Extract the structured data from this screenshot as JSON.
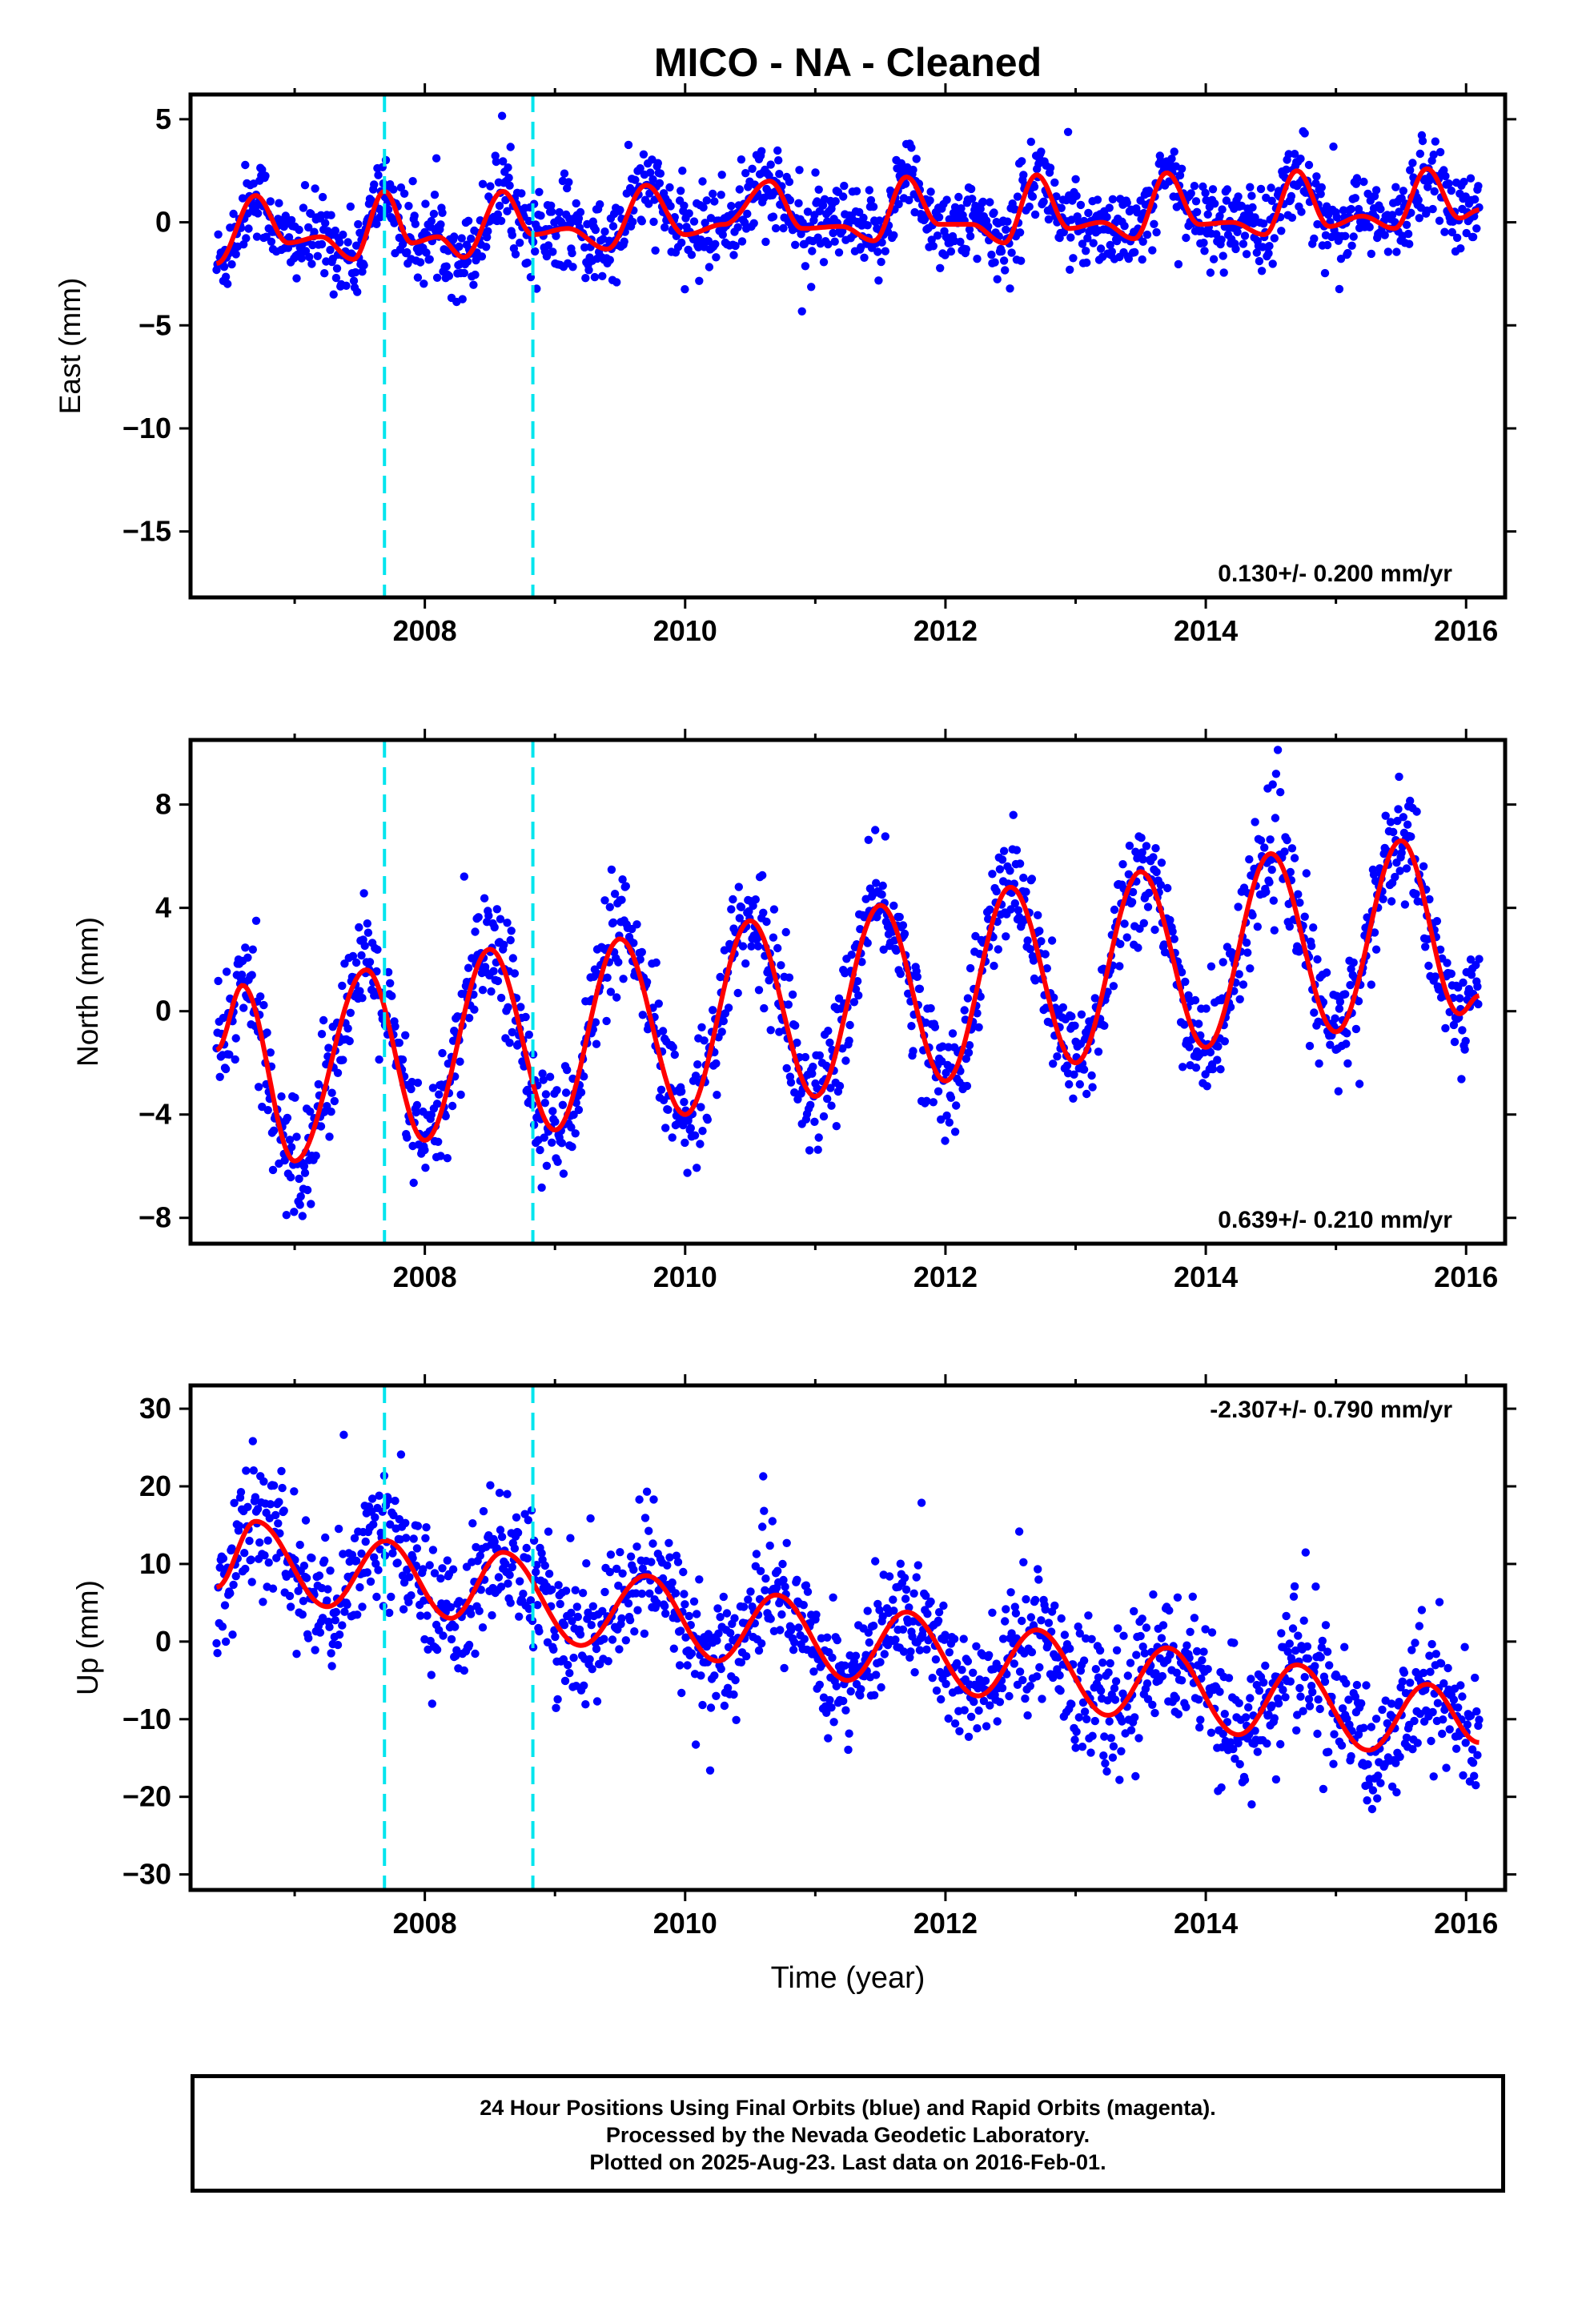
{
  "title": "MICO  - NA - Cleaned",
  "footer": {
    "line1": "24 Hour Positions Using Final Orbits (blue) and Rapid Orbits (magenta).",
    "line2": "Processed by the Nevada Geodetic Laboratory.",
    "line3": "Plotted on 2025-Aug-23. Last data on 2016-Feb-01."
  },
  "colors": {
    "points": "#0000ff",
    "fit": "#ff0000",
    "events": "#00e5ee"
  },
  "chart_data": [
    {
      "type": "scatter",
      "ylabel": "East (mm)",
      "xlabel": "",
      "xlim": [
        2006.2,
        2016.3
      ],
      "ylim": [
        -18.2,
        6.2
      ],
      "yticks": [
        -15,
        -10,
        -5,
        0,
        5
      ],
      "xticks": [
        2008,
        2010,
        2012,
        2014,
        2016
      ],
      "event_lines": [
        2007.69,
        2008.83
      ],
      "rate_label": "0.130+/- 0.200 mm/yr",
      "rate_position": "bottom-right",
      "series": [
        {
          "name": "",
          "x": [
            2006.4,
            2006.7,
            2006.95,
            2007.2,
            2007.45,
            2007.69,
            2007.9,
            2008.1,
            2008.3,
            2008.6,
            2008.83,
            2009.1,
            2009.4,
            2009.7,
            2010.0,
            2010.3,
            2010.65,
            2010.9,
            2011.2,
            2011.45,
            2011.7,
            2011.95,
            2012.2,
            2012.45,
            2012.7,
            2012.95,
            2013.2,
            2013.45,
            2013.7,
            2013.95,
            2014.2,
            2014.45,
            2014.7,
            2014.95,
            2015.2,
            2015.45,
            2015.7,
            2015.95,
            2016.1
          ],
          "y": [
            -2.0,
            1.3,
            -1.0,
            -0.7,
            -1.8,
            1.5,
            -1.0,
            -0.7,
            -1.7,
            1.5,
            -0.6,
            -0.3,
            -1.3,
            1.8,
            -0.6,
            -0.1,
            2.0,
            -0.3,
            -0.2,
            -0.9,
            2.2,
            -0.1,
            -0.1,
            -1.0,
            2.3,
            -0.3,
            0.0,
            -0.8,
            2.4,
            -0.1,
            0.0,
            -0.6,
            2.5,
            -0.2,
            0.3,
            -0.3,
            2.6,
            0.2,
            0.6
          ]
        }
      ]
    },
    {
      "type": "scatter",
      "ylabel": "North (mm)",
      "xlabel": "",
      "xlim": [
        2006.2,
        2016.3
      ],
      "ylim": [
        -9.0,
        10.5
      ],
      "yticks": [
        -8,
        -4,
        0,
        4,
        8
      ],
      "xticks": [
        2008,
        2010,
        2012,
        2014,
        2016
      ],
      "event_lines": [
        2007.69,
        2008.83
      ],
      "rate_label": "0.639+/- 0.210 mm/yr",
      "rate_position": "bottom-right",
      "series": [
        {
          "name": "",
          "x": [
            2006.4,
            2006.6,
            2007.0,
            2007.55,
            2008.0,
            2008.5,
            2009.0,
            2009.5,
            2010.0,
            2010.5,
            2011.0,
            2011.5,
            2012.0,
            2012.5,
            2013.0,
            2013.5,
            2014.0,
            2014.5,
            2015.0,
            2015.5,
            2015.95,
            2016.1
          ],
          "y": [
            -1.5,
            1.0,
            -5.8,
            1.6,
            -5.0,
            2.4,
            -4.6,
            2.8,
            -4.0,
            3.5,
            -3.3,
            4.1,
            -2.7,
            4.8,
            -2.0,
            5.4,
            -1.4,
            6.1,
            -0.8,
            6.6,
            -0.1,
            0.6
          ]
        }
      ]
    },
    {
      "type": "scatter",
      "ylabel": "Up (mm)",
      "xlabel": "Time (year)",
      "xlim": [
        2006.2,
        2016.3
      ],
      "ylim": [
        -32,
        33
      ],
      "yticks": [
        -30,
        -20,
        -10,
        0,
        10,
        20,
        30
      ],
      "xticks": [
        2008,
        2010,
        2012,
        2014,
        2016
      ],
      "event_lines": [
        2007.69,
        2008.83
      ],
      "rate_label": "-2.307+/- 0.790 mm/yr",
      "rate_position": "top-right",
      "series": [
        {
          "name": "",
          "x": [
            2006.4,
            2006.7,
            2007.25,
            2007.7,
            2008.2,
            2008.6,
            2009.2,
            2009.7,
            2010.25,
            2010.7,
            2011.25,
            2011.7,
            2012.25,
            2012.7,
            2013.25,
            2013.7,
            2014.25,
            2014.7,
            2015.25,
            2015.7,
            2016.1
          ],
          "y": [
            7.0,
            15.5,
            4.5,
            13.0,
            3.0,
            11.5,
            -0.5,
            8.5,
            -2.5,
            6.0,
            -5.0,
            3.8,
            -7.0,
            1.5,
            -9.5,
            -0.8,
            -12.0,
            -3.0,
            -14.0,
            -5.5,
            -13.0
          ]
        }
      ]
    }
  ]
}
